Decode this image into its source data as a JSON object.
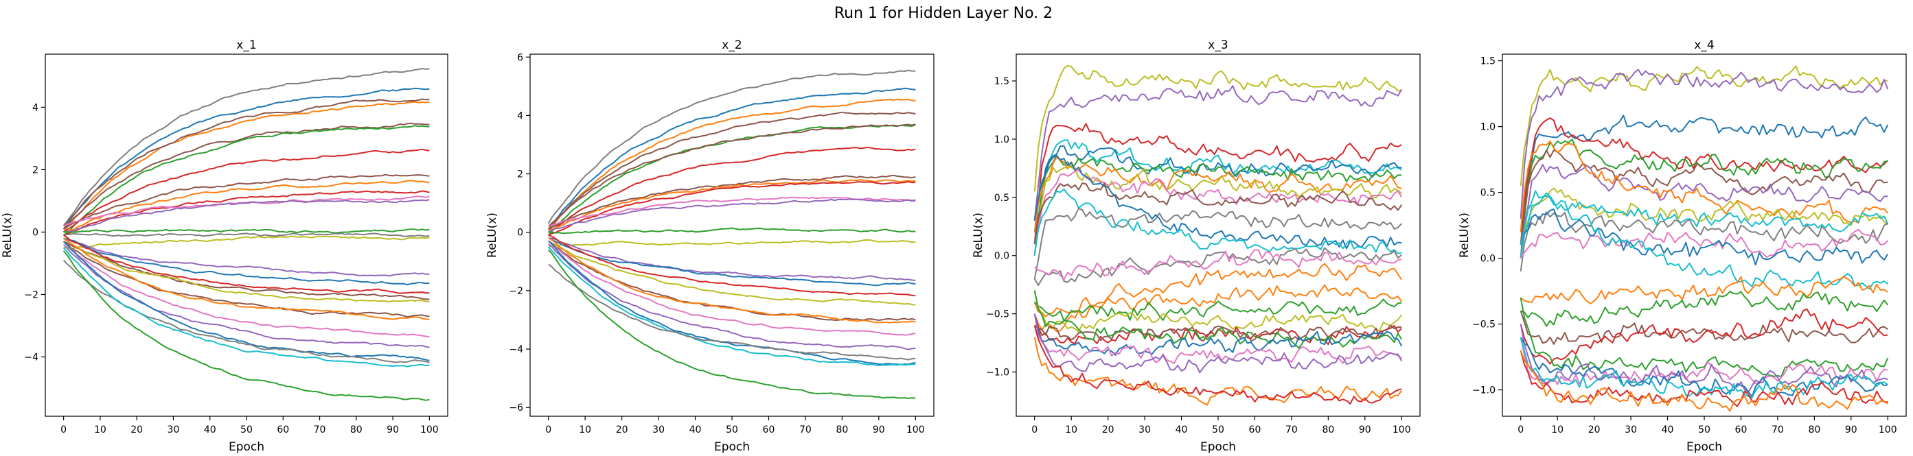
{
  "figure": {
    "suptitle": "Run 1 for Hidden Layer No. 2"
  },
  "palette": [
    "#1f77b4",
    "#ff7f0e",
    "#2ca02c",
    "#d62728",
    "#9467bd",
    "#8c564b",
    "#e377c2",
    "#7f7f7f",
    "#bcbd22",
    "#17becf"
  ],
  "chart_data": [
    {
      "type": "line",
      "title": "x_1",
      "xlabel": "Epoch",
      "ylabel": "ReLU(x)",
      "xlim": [
        -5,
        105
      ],
      "ylim": [
        -5.9,
        5.7
      ],
      "xticks": [
        0,
        10,
        20,
        30,
        40,
        50,
        60,
        70,
        80,
        90,
        100
      ],
      "yticks": [
        -4,
        -2,
        0,
        2,
        4
      ],
      "epochs": 100,
      "style": "smooth",
      "series": [
        {
          "color": "#7f7f7f",
          "start": 0.2,
          "end": 5.2
        },
        {
          "color": "#1f77b4",
          "start": 0.1,
          "end": 4.6
        },
        {
          "color": "#ff7f0e",
          "start": 0.0,
          "end": 4.2
        },
        {
          "color": "#8c564b",
          "start": 0.2,
          "end": 4.25
        },
        {
          "color": "#8c564b",
          "start": 0.1,
          "end": 3.5
        },
        {
          "color": "#2ca02c",
          "start": -0.1,
          "end": 3.4
        },
        {
          "color": "#d62728",
          "start": 0.0,
          "end": 2.55
        },
        {
          "color": "#8c564b",
          "start": 0.1,
          "end": 1.85
        },
        {
          "color": "#ff7f0e",
          "start": 0.0,
          "end": 1.6
        },
        {
          "color": "#d62728",
          "start": -0.1,
          "end": 1.3
        },
        {
          "color": "#e377c2",
          "start": 0.2,
          "end": 1.1
        },
        {
          "color": "#9467bd",
          "start": 0.0,
          "end": 1.05
        },
        {
          "color": "#2ca02c",
          "start": 0.0,
          "end": 0.05
        },
        {
          "color": "#7f7f7f",
          "start": -0.1,
          "end": -0.1
        },
        {
          "color": "#bcbd22",
          "start": -0.5,
          "end": -0.15
        },
        {
          "color": "#9467bd",
          "start": -0.2,
          "end": -1.4
        },
        {
          "color": "#1f77b4",
          "start": -0.2,
          "end": -1.6
        },
        {
          "color": "#d62728",
          "start": -0.1,
          "end": -1.95
        },
        {
          "color": "#8c564b",
          "start": -0.3,
          "end": -2.1
        },
        {
          "color": "#bcbd22",
          "start": -0.2,
          "end": -2.2
        },
        {
          "color": "#8c564b",
          "start": -0.3,
          "end": -2.7
        },
        {
          "color": "#ff7f0e",
          "start": -0.2,
          "end": -2.75
        },
        {
          "color": "#e377c2",
          "start": -0.3,
          "end": -3.3
        },
        {
          "color": "#9467bd",
          "start": -0.4,
          "end": -3.7
        },
        {
          "color": "#1f77b4",
          "start": -0.3,
          "end": -4.05
        },
        {
          "color": "#7f7f7f",
          "start": -0.9,
          "end": -4.1
        },
        {
          "color": "#17becf",
          "start": -0.5,
          "end": -4.3
        },
        {
          "color": "#2ca02c",
          "start": -0.6,
          "end": -5.35
        }
      ]
    },
    {
      "type": "line",
      "title": "x_2",
      "xlabel": "Epoch",
      "ylabel": "ReLU(x)",
      "xlim": [
        -5,
        105
      ],
      "ylim": [
        -6.3,
        6.1
      ],
      "xticks": [
        0,
        10,
        20,
        30,
        40,
        50,
        60,
        70,
        80,
        90,
        100
      ],
      "yticks": [
        -6,
        -4,
        -2,
        0,
        2,
        4,
        6
      ],
      "epochs": 100,
      "style": "smooth",
      "series": [
        {
          "color": "#7f7f7f",
          "start": 0.3,
          "end": 5.55
        },
        {
          "color": "#1f77b4",
          "start": 0.1,
          "end": 4.9
        },
        {
          "color": "#ff7f0e",
          "start": 0.0,
          "end": 4.5
        },
        {
          "color": "#8c564b",
          "start": 0.2,
          "end": 4.1
        },
        {
          "color": "#2ca02c",
          "start": -0.1,
          "end": 3.75
        },
        {
          "color": "#8c564b",
          "start": 0.1,
          "end": 3.7
        },
        {
          "color": "#d62728",
          "start": 0.0,
          "end": 2.85
        },
        {
          "color": "#8c564b",
          "start": 0.1,
          "end": 1.95
        },
        {
          "color": "#ff7f0e",
          "start": 0.0,
          "end": 1.8
        },
        {
          "color": "#d62728",
          "start": -0.1,
          "end": 1.7
        },
        {
          "color": "#e377c2",
          "start": 0.2,
          "end": 1.2
        },
        {
          "color": "#9467bd",
          "start": 0.0,
          "end": 1.1
        },
        {
          "color": "#2ca02c",
          "start": 0.0,
          "end": 0.05
        },
        {
          "color": "#bcbd22",
          "start": -0.5,
          "end": -0.3
        },
        {
          "color": "#9467bd",
          "start": -0.2,
          "end": -1.6
        },
        {
          "color": "#1f77b4",
          "start": -0.2,
          "end": -1.75
        },
        {
          "color": "#d62728",
          "start": -0.1,
          "end": -2.1
        },
        {
          "color": "#bcbd22",
          "start": -0.3,
          "end": -2.4
        },
        {
          "color": "#8c564b",
          "start": -0.3,
          "end": -3.0
        },
        {
          "color": "#ff7f0e",
          "start": -0.2,
          "end": -3.05
        },
        {
          "color": "#e377c2",
          "start": -0.3,
          "end": -3.5
        },
        {
          "color": "#9467bd",
          "start": -0.4,
          "end": -4.0
        },
        {
          "color": "#1f77b4",
          "start": -0.3,
          "end": -4.45
        },
        {
          "color": "#17becf",
          "start": -0.5,
          "end": -4.6
        },
        {
          "color": "#7f7f7f",
          "start": -1.1,
          "end": -4.3
        },
        {
          "color": "#2ca02c",
          "start": -0.6,
          "end": -5.75
        }
      ]
    },
    {
      "type": "line",
      "title": "x_3",
      "xlabel": "Epoch",
      "ylabel": "ReLU(x)",
      "xlim": [
        -5,
        105
      ],
      "ylim": [
        -1.38,
        1.73
      ],
      "xticks": [
        0,
        10,
        20,
        30,
        40,
        50,
        60,
        70,
        80,
        90,
        100
      ],
      "yticks": [
        -1.0,
        -0.5,
        0.0,
        0.5,
        1.0,
        1.5
      ],
      "tick_labels": [
        "−1.0",
        "−0.5",
        "0.0",
        "0.5",
        "1.0",
        "1.5"
      ],
      "epochs": 100,
      "style": "noisy",
      "series": [
        {
          "color": "#bcbd22",
          "start": 0.55,
          "peak": 1.55,
          "end": 1.5
        },
        {
          "color": "#9467bd",
          "start": 0.3,
          "peak": 1.35,
          "end": 1.38
        },
        {
          "color": "#d62728",
          "start": 0.1,
          "peak": 1.15,
          "end": 0.85
        },
        {
          "color": "#17becf",
          "start": 0.2,
          "peak": 0.95,
          "end": 0.75
        },
        {
          "color": "#1f77b4",
          "start": 0.1,
          "peak": 0.9,
          "end": 0.72
        },
        {
          "color": "#2ca02c",
          "start": 0.0,
          "peak": 0.85,
          "end": 0.7
        },
        {
          "color": "#ff7f0e",
          "start": 0.2,
          "peak": 0.8,
          "end": 0.6
        },
        {
          "color": "#bcbd22",
          "start": 0.1,
          "peak": 0.75,
          "end": 0.55
        },
        {
          "color": "#e377c2",
          "start": 0.0,
          "peak": 0.7,
          "end": 0.5
        },
        {
          "color": "#8c564b",
          "start": 0.1,
          "peak": 0.6,
          "end": 0.45
        },
        {
          "color": "#7f7f7f",
          "start": -0.2,
          "peak": 0.4,
          "end": 0.3
        },
        {
          "color": "#1f77b4",
          "start": 0.3,
          "peak": 0.85,
          "end": 0.08
        },
        {
          "color": "#17becf",
          "start": 0.0,
          "peak": 0.5,
          "end": 0.05
        },
        {
          "color": "#7f7f7f",
          "start": -0.2,
          "peak": -0.2,
          "end": 0.0
        },
        {
          "color": "#e377c2",
          "start": -0.1,
          "peak": -0.15,
          "end": -0.05
        },
        {
          "color": "#ff7f0e",
          "start": -0.4,
          "peak": -0.5,
          "end": -0.15
        },
        {
          "color": "#ff7f0e",
          "start": -0.5,
          "peak": -0.6,
          "end": -0.3
        },
        {
          "color": "#2ca02c",
          "start": -0.4,
          "peak": -0.5,
          "end": -0.45
        },
        {
          "color": "#bcbd22",
          "start": -0.3,
          "peak": -0.6,
          "end": -0.55
        },
        {
          "color": "#d62728",
          "start": -0.5,
          "peak": -0.7,
          "end": -0.65
        },
        {
          "color": "#8c564b",
          "start": -0.6,
          "peak": -0.7,
          "end": -0.68
        },
        {
          "color": "#2ca02c",
          "start": -0.3,
          "peak": -0.65,
          "end": -0.7
        },
        {
          "color": "#1f77b4",
          "start": -0.5,
          "peak": -0.8,
          "end": -0.75
        },
        {
          "color": "#e377c2",
          "start": -0.6,
          "peak": -0.9,
          "end": -0.85
        },
        {
          "color": "#9467bd",
          "start": -0.5,
          "peak": -0.9,
          "end": -0.92
        },
        {
          "color": "#ff7f0e",
          "start": -0.7,
          "peak": -1.05,
          "end": -1.2
        },
        {
          "color": "#d62728",
          "start": -0.6,
          "peak": -1.0,
          "end": -1.23
        }
      ]
    },
    {
      "type": "line",
      "title": "x_4",
      "xlabel": "Epoch",
      "ylabel": "ReLU(x)",
      "xlim": [
        -5,
        105
      ],
      "ylim": [
        -1.2,
        1.55
      ],
      "xticks": [
        0,
        10,
        20,
        30,
        40,
        50,
        60,
        70,
        80,
        90,
        100
      ],
      "yticks": [
        -1.0,
        -0.5,
        0.0,
        0.5,
        1.0,
        1.5
      ],
      "tick_labels": [
        "−1.0",
        "−0.5",
        "0.0",
        "0.5",
        "1.0",
        "1.5"
      ],
      "epochs": 100,
      "style": "noisy",
      "series": [
        {
          "color": "#bcbd22",
          "start": 0.55,
          "peak": 1.35,
          "end": 1.37
        },
        {
          "color": "#9467bd",
          "start": 0.3,
          "peak": 1.3,
          "end": 1.35
        },
        {
          "color": "#1f77b4",
          "start": 0.2,
          "peak": 0.95,
          "end": 1.0
        },
        {
          "color": "#d62728",
          "start": 0.1,
          "peak": 1.0,
          "end": 0.7
        },
        {
          "color": "#2ca02c",
          "start": 0.0,
          "peak": 0.85,
          "end": 0.68
        },
        {
          "color": "#8c564b",
          "start": 0.1,
          "peak": 0.8,
          "end": 0.55
        },
        {
          "color": "#9467bd",
          "start": 0.0,
          "peak": 0.7,
          "end": 0.47
        },
        {
          "color": "#ff7f0e",
          "start": 0.2,
          "peak": 0.9,
          "end": 0.35
        },
        {
          "color": "#bcbd22",
          "start": 0.1,
          "peak": 0.5,
          "end": 0.32
        },
        {
          "color": "#17becf",
          "start": 0.0,
          "peak": 0.45,
          "end": 0.28
        },
        {
          "color": "#7f7f7f",
          "start": -0.1,
          "peak": 0.3,
          "end": 0.2
        },
        {
          "color": "#e377c2",
          "start": 0.0,
          "peak": 0.2,
          "end": 0.12
        },
        {
          "color": "#1f77b4",
          "start": 0.1,
          "peak": 0.3,
          "end": -0.02
        },
        {
          "color": "#17becf",
          "start": 0.1,
          "peak": 0.5,
          "end": -0.2
        },
        {
          "color": "#ff7f0e",
          "start": -0.3,
          "peak": -0.3,
          "end": -0.22
        },
        {
          "color": "#2ca02c",
          "start": -0.4,
          "peak": -0.5,
          "end": -0.32
        },
        {
          "color": "#8c564b",
          "start": -0.4,
          "peak": -0.6,
          "end": -0.55
        },
        {
          "color": "#d62728",
          "start": -0.5,
          "peak": -0.75,
          "end": -0.5
        },
        {
          "color": "#2ca02c",
          "start": -0.3,
          "peak": -0.8,
          "end": -0.8
        },
        {
          "color": "#e377c2",
          "start": -0.6,
          "peak": -0.95,
          "end": -0.85
        },
        {
          "color": "#9467bd",
          "start": -0.5,
          "peak": -0.9,
          "end": -0.9
        },
        {
          "color": "#1f77b4",
          "start": -0.6,
          "peak": -0.85,
          "end": -0.98
        },
        {
          "color": "#17becf",
          "start": -0.6,
          "peak": -0.9,
          "end": -1.0
        },
        {
          "color": "#d62728",
          "start": -0.7,
          "peak": -1.0,
          "end": -1.05
        },
        {
          "color": "#ff7f0e",
          "start": -0.7,
          "peak": -1.05,
          "end": -1.08
        }
      ]
    }
  ]
}
